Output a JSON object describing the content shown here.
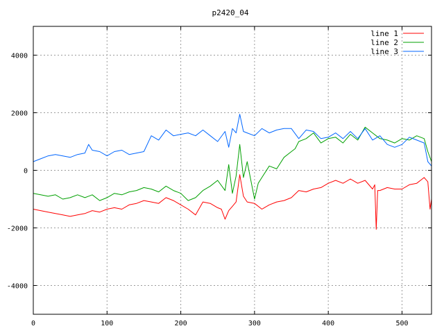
{
  "chart_data": {
    "type": "line",
    "title": "p2420_04",
    "xlabel": "",
    "ylabel": "",
    "xlim": [
      0,
      540
    ],
    "ylim": [
      -5000,
      5000
    ],
    "x_ticks": [
      0,
      100,
      200,
      300,
      400,
      500
    ],
    "y_ticks": [
      -4000,
      -2000,
      0,
      2000,
      4000
    ],
    "grid": true,
    "legend_position": "top-right",
    "series": [
      {
        "name": "line 1",
        "color": "#ff0000",
        "x": [
          0,
          10,
          20,
          30,
          40,
          50,
          60,
          70,
          80,
          90,
          100,
          110,
          120,
          130,
          140,
          150,
          160,
          170,
          180,
          190,
          200,
          210,
          220,
          230,
          240,
          250,
          255,
          260,
          265,
          270,
          275,
          280,
          285,
          290,
          300,
          310,
          320,
          330,
          340,
          350,
          360,
          370,
          380,
          390,
          400,
          410,
          420,
          430,
          440,
          450,
          460,
          463,
          465,
          467,
          470,
          480,
          490,
          500,
          510,
          520,
          530,
          535,
          538,
          540
        ],
        "y": [
          -1350,
          -1400,
          -1450,
          -1500,
          -1550,
          -1600,
          -1550,
          -1500,
          -1400,
          -1450,
          -1350,
          -1300,
          -1350,
          -1200,
          -1150,
          -1050,
          -1100,
          -1150,
          -950,
          -1050,
          -1200,
          -1350,
          -1550,
          -1100,
          -1150,
          -1300,
          -1350,
          -1700,
          -1400,
          -1250,
          -1100,
          -150,
          -900,
          -1100,
          -1150,
          -1350,
          -1200,
          -1100,
          -1050,
          -950,
          -700,
          -750,
          -650,
          -600,
          -450,
          -350,
          -450,
          -300,
          -450,
          -350,
          -650,
          -500,
          -2050,
          -700,
          -700,
          -600,
          -650,
          -650,
          -500,
          -450,
          -250,
          -400,
          -1350,
          -1000
        ]
      },
      {
        "name": "line 2",
        "color": "#00a000",
        "x": [
          0,
          10,
          20,
          30,
          40,
          50,
          60,
          70,
          80,
          90,
          100,
          110,
          120,
          130,
          140,
          150,
          160,
          170,
          180,
          190,
          200,
          210,
          220,
          230,
          240,
          250,
          260,
          265,
          270,
          275,
          280,
          285,
          290,
          300,
          305,
          310,
          320,
          330,
          340,
          350,
          355,
          360,
          370,
          380,
          390,
          400,
          410,
          420,
          430,
          440,
          450,
          460,
          470,
          480,
          490,
          500,
          510,
          520,
          530,
          535,
          540
        ],
        "y": [
          -800,
          -850,
          -900,
          -850,
          -1000,
          -950,
          -850,
          -950,
          -850,
          -1050,
          -950,
          -800,
          -850,
          -750,
          -700,
          -600,
          -650,
          -750,
          -550,
          -700,
          -800,
          -1050,
          -950,
          -700,
          -550,
          -350,
          -700,
          200,
          -800,
          -200,
          900,
          -250,
          300,
          -1000,
          -450,
          -250,
          150,
          50,
          450,
          650,
          750,
          1000,
          1100,
          1300,
          950,
          1100,
          1150,
          950,
          1250,
          1050,
          1500,
          1300,
          1100,
          1050,
          950,
          1100,
          1050,
          1200,
          1100,
          650,
          300
        ]
      },
      {
        "name": "line 3",
        "color": "#0066ff",
        "x": [
          0,
          10,
          20,
          30,
          40,
          50,
          60,
          70,
          75,
          80,
          90,
          100,
          110,
          120,
          130,
          140,
          150,
          160,
          170,
          180,
          190,
          200,
          210,
          220,
          230,
          240,
          250,
          260,
          265,
          270,
          275,
          280,
          285,
          290,
          300,
          310,
          320,
          330,
          340,
          350,
          360,
          370,
          380,
          390,
          400,
          410,
          420,
          430,
          440,
          450,
          460,
          470,
          480,
          490,
          500,
          510,
          520,
          530,
          535,
          540
        ],
        "y": [
          300,
          400,
          500,
          550,
          500,
          450,
          550,
          600,
          900,
          700,
          650,
          500,
          650,
          700,
          550,
          600,
          650,
          1200,
          1050,
          1400,
          1200,
          1250,
          1300,
          1200,
          1400,
          1200,
          1000,
          1350,
          800,
          1450,
          1300,
          1950,
          1350,
          1300,
          1200,
          1450,
          1300,
          1400,
          1450,
          1450,
          1100,
          1400,
          1350,
          1100,
          1150,
          1300,
          1100,
          1350,
          1100,
          1450,
          1050,
          1200,
          900,
          800,
          900,
          1150,
          1050,
          950,
          300,
          150
        ]
      }
    ]
  }
}
